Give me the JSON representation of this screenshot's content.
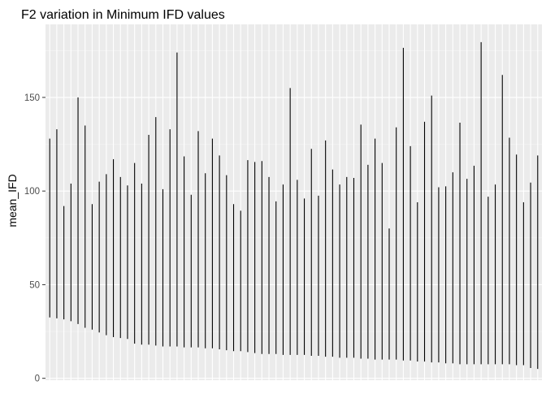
{
  "chart_data": {
    "type": "range_bar",
    "title": "F2 variation in Minimum IFD values",
    "xlabel": "",
    "ylabel": "mean_IFD",
    "ylim": [
      -1,
      189
    ],
    "yticks": [
      0,
      50,
      100,
      150
    ],
    "grid": true,
    "x_count": 70,
    "series": [
      {
        "min": [
          32.5,
          32,
          31.5,
          30.5,
          29,
          27,
          26,
          24.5,
          23,
          22,
          21.5,
          21,
          18.5,
          18,
          18,
          17.5,
          17,
          17,
          17,
          16.5,
          16.5,
          16.5,
          16,
          16,
          15.5,
          15,
          14.5,
          14.5,
          14,
          13.5,
          13,
          13,
          13,
          12.5,
          12.5,
          12.5,
          12.5,
          12,
          12,
          11.5,
          11.5,
          11,
          11,
          11,
          10.5,
          10.5,
          10,
          10,
          10,
          10,
          9.5,
          9.5,
          9,
          9,
          8.5,
          8.5,
          8,
          8,
          7.5,
          7.5,
          7.5,
          7.5,
          7.5,
          7.5,
          7.5,
          7.5,
          7,
          7,
          5.5,
          5
        ],
        "max": [
          128,
          133,
          92,
          104,
          150,
          135,
          93,
          105,
          109,
          117,
          107.5,
          103,
          115,
          104,
          130,
          139.5,
          101,
          133,
          174,
          118.5,
          98,
          132,
          109.5,
          128,
          119,
          108.5,
          93,
          89.5,
          116.5,
          115.5,
          116,
          107.5,
          94.5,
          103.5,
          155,
          106,
          96,
          122.5,
          97.5,
          127,
          111.5,
          103.5,
          107.5,
          107,
          135.5,
          114,
          128,
          115,
          80,
          134,
          176.5,
          124,
          94,
          137,
          151,
          102,
          102.5,
          110,
          136.5,
          106.5,
          113.5,
          179.5,
          97,
          103.5,
          162,
          128.5,
          119.5,
          94,
          104.5,
          119
        ]
      }
    ]
  }
}
